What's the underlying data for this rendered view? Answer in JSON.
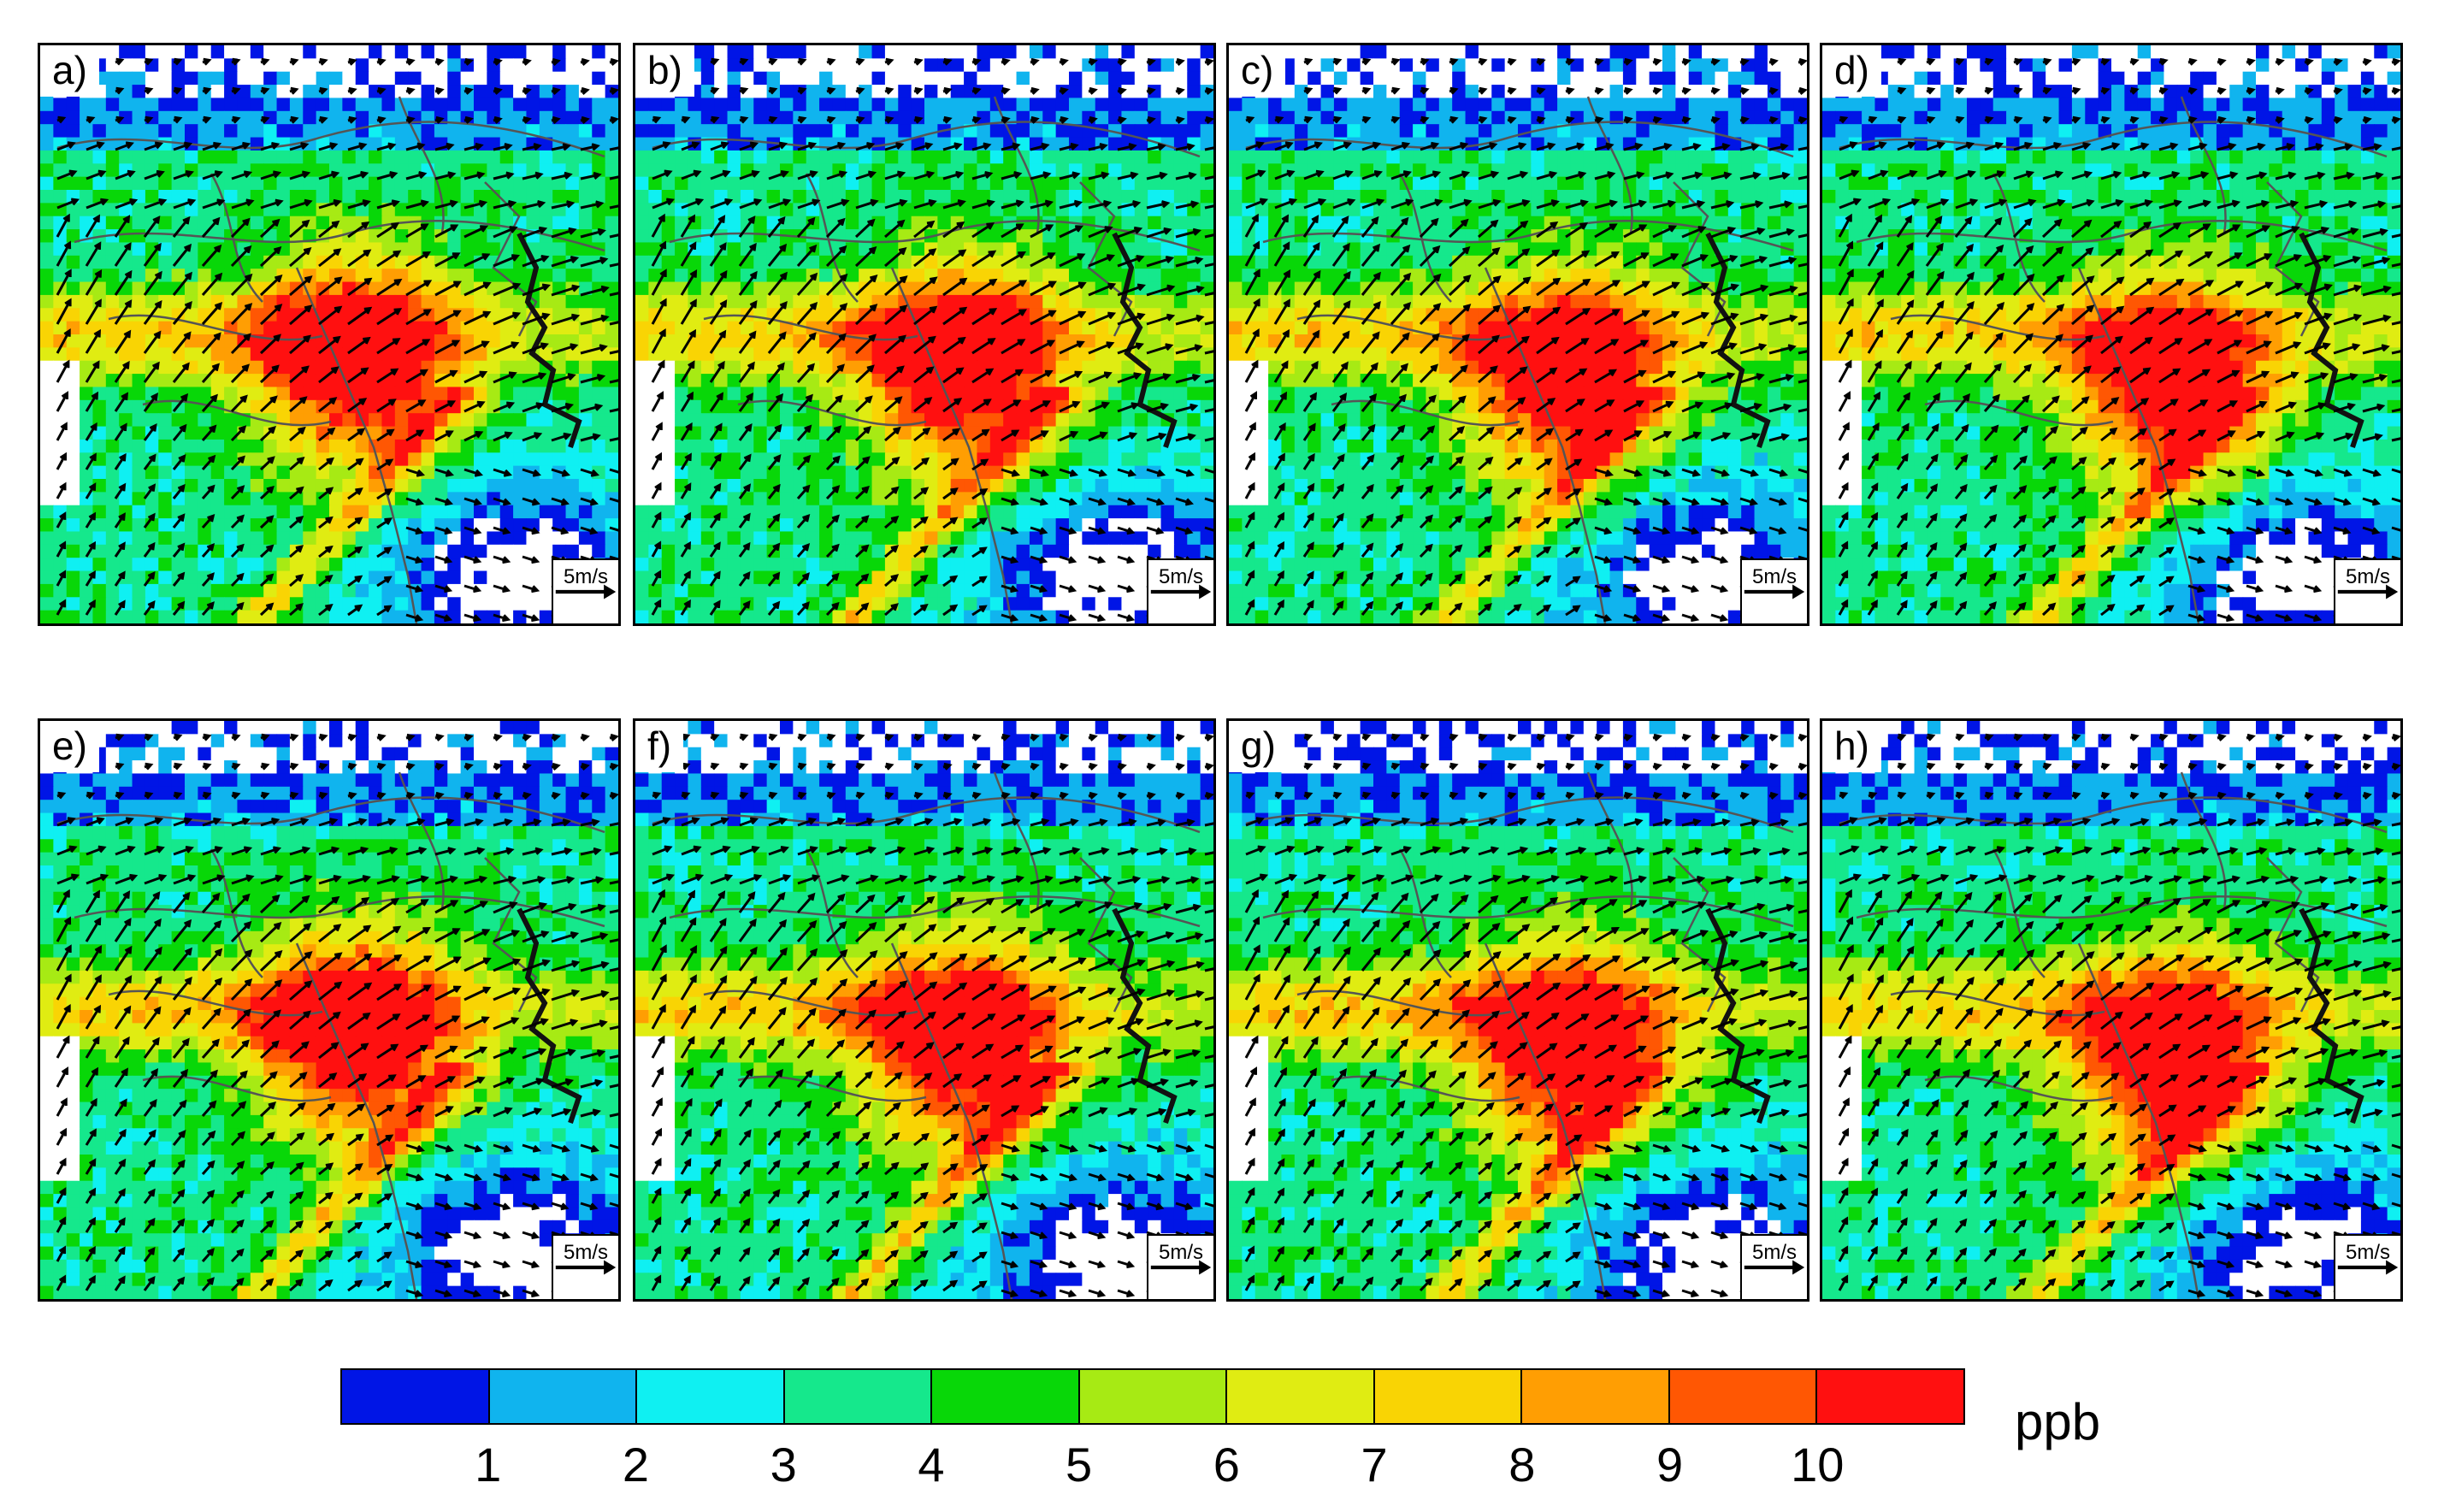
{
  "figure": {
    "panels": [
      {
        "id": "a",
        "label": "a)",
        "scale_label": "5m/s"
      },
      {
        "id": "b",
        "label": "b)",
        "scale_label": "5m/s"
      },
      {
        "id": "c",
        "label": "c)",
        "scale_label": "5m/s"
      },
      {
        "id": "d",
        "label": "d)",
        "scale_label": "5m/s"
      },
      {
        "id": "e",
        "label": "e)",
        "scale_label": "5m/s"
      },
      {
        "id": "f",
        "label": "f)",
        "scale_label": "5m/s"
      },
      {
        "id": "g",
        "label": "g)",
        "scale_label": "5m/s"
      },
      {
        "id": "h",
        "label": "h)",
        "scale_label": "5m/s"
      }
    ],
    "colorbar": {
      "unit": "ppb",
      "ticks": [
        "1",
        "2",
        "3",
        "4",
        "5",
        "6",
        "7",
        "8",
        "9",
        "10"
      ],
      "colors": [
        "#0015e6",
        "#10b4ee",
        "#0ff0f2",
        "#15e88c",
        "#08d708",
        "#a7ea14",
        "#e0ec12",
        "#f9d404",
        "#ff9e03",
        "#ff5703",
        "#ff1010"
      ]
    },
    "field": {
      "quantity": "concentration",
      "units": "ppb",
      "wind_arrows": true
    }
  }
}
